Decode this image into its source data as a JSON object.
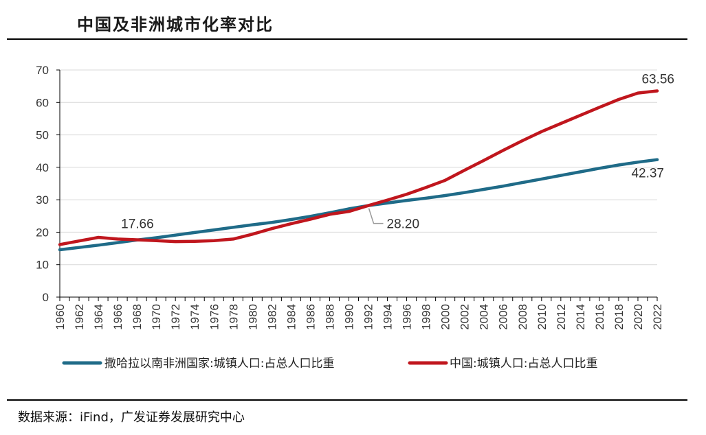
{
  "title": "中国及非洲城市化率对比",
  "source": "数据来源：iFind，广发证券发展研究中心",
  "colors": {
    "africa": "#1f6b88",
    "china": "#c0161d",
    "axis": "#000000",
    "grid": "#d9d9d9",
    "leader": "#999999"
  },
  "chart_data": {
    "type": "line",
    "title": "中国及非洲城市化率对比",
    "xlabel": "",
    "ylabel": "",
    "ylim": [
      0,
      70
    ],
    "yticks": [
      0,
      10,
      20,
      30,
      40,
      50,
      60,
      70
    ],
    "xlim": [
      1960,
      2022
    ],
    "xticks": [
      1960,
      1962,
      1964,
      1966,
      1968,
      1970,
      1972,
      1974,
      1976,
      1978,
      1980,
      1982,
      1984,
      1986,
      1988,
      1990,
      1992,
      1994,
      1996,
      1998,
      2000,
      2002,
      2004,
      2006,
      2008,
      2010,
      2012,
      2014,
      2016,
      2018,
      2020,
      2022
    ],
    "grid": true,
    "legend_position": "bottom",
    "series": [
      {
        "name": "撒哈拉以南非洲国家:城镇人口:占总人口比重",
        "color": "#1f6b88",
        "x": [
          1960,
          1962,
          1964,
          1966,
          1968,
          1970,
          1972,
          1974,
          1976,
          1978,
          1980,
          1982,
          1984,
          1986,
          1988,
          1990,
          1992,
          1994,
          1996,
          1998,
          2000,
          2002,
          2004,
          2006,
          2008,
          2010,
          2012,
          2014,
          2016,
          2018,
          2020,
          2022
        ],
        "values": [
          14.6,
          15.3,
          16.0,
          16.8,
          17.6,
          18.3,
          19.1,
          19.9,
          20.7,
          21.5,
          22.3,
          23.0,
          23.9,
          24.9,
          26.0,
          27.2,
          28.2,
          29.0,
          29.8,
          30.5,
          31.3,
          32.2,
          33.2,
          34.2,
          35.3,
          36.4,
          37.5,
          38.6,
          39.7,
          40.7,
          41.6,
          42.37
        ]
      },
      {
        "name": "中国:城镇人口:占总人口比重",
        "color": "#c0161d",
        "x": [
          1960,
          1962,
          1964,
          1966,
          1968,
          1970,
          1972,
          1974,
          1976,
          1978,
          1980,
          1982,
          1984,
          1986,
          1988,
          1990,
          1992,
          1994,
          1996,
          1998,
          2000,
          2002,
          2004,
          2006,
          2008,
          2010,
          2012,
          2014,
          2016,
          2018,
          2020,
          2022
        ],
        "values": [
          16.2,
          17.3,
          18.4,
          17.9,
          17.66,
          17.4,
          17.1,
          17.2,
          17.4,
          17.9,
          19.4,
          21.1,
          22.6,
          24.0,
          25.5,
          26.4,
          28.2,
          29.9,
          31.7,
          33.8,
          36.0,
          39.1,
          42.1,
          45.2,
          48.2,
          51.0,
          53.5,
          56.0,
          58.5,
          60.9,
          62.9,
          63.56
        ]
      }
    ],
    "annotations": [
      {
        "text": "17.66",
        "x": 1968,
        "y": 17.66
      },
      {
        "text": "28.20",
        "x": 1992,
        "y": 28.2
      },
      {
        "text": "63.56",
        "x": 2022,
        "y": 63.56
      },
      {
        "text": "42.37",
        "x": 2022,
        "y": 42.37
      }
    ]
  }
}
